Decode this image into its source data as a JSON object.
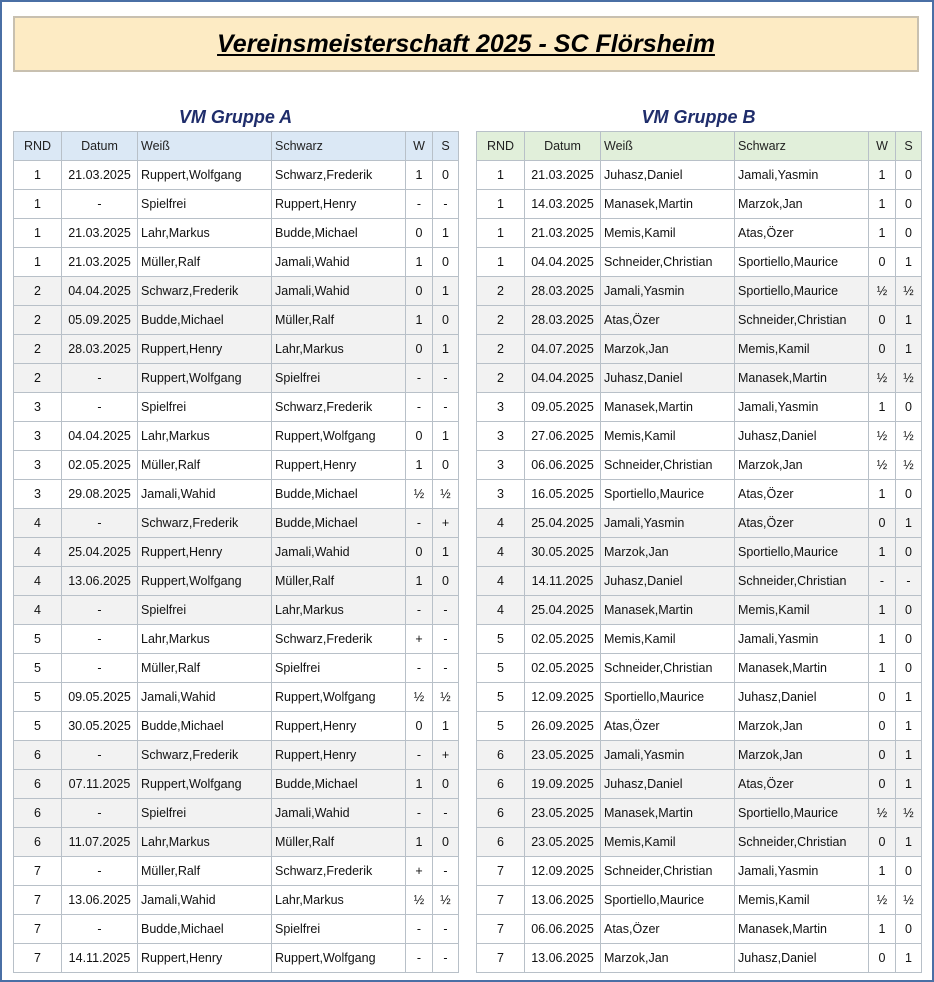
{
  "title": "Vereinsmeisterschaft 2025 - SC Flörsheim",
  "columns": [
    "RND",
    "Datum",
    "Weiß",
    "Schwarz",
    "W",
    "S"
  ],
  "groups": [
    {
      "title": "VM Gruppe A",
      "header_color": "#dbe8f5",
      "rows": [
        [
          "1",
          "21.03.2025",
          "Ruppert,Wolfgang",
          "Schwarz,Frederik",
          "1",
          "0"
        ],
        [
          "1",
          "-",
          "Spielfrei",
          "Ruppert,Henry",
          "-",
          "-"
        ],
        [
          "1",
          "21.03.2025",
          "Lahr,Markus",
          "Budde,Michael",
          "0",
          "1"
        ],
        [
          "1",
          "21.03.2025",
          "Müller,Ralf",
          "Jamali,Wahid",
          "1",
          "0"
        ],
        [
          "2",
          "04.04.2025",
          "Schwarz,Frederik",
          "Jamali,Wahid",
          "0",
          "1"
        ],
        [
          "2",
          "05.09.2025",
          "Budde,Michael",
          "Müller,Ralf",
          "1",
          "0"
        ],
        [
          "2",
          "28.03.2025",
          "Ruppert,Henry",
          "Lahr,Markus",
          "0",
          "1"
        ],
        [
          "2",
          "-",
          "Ruppert,Wolfgang",
          "Spielfrei",
          "-",
          "-"
        ],
        [
          "3",
          "-",
          "Spielfrei",
          "Schwarz,Frederik",
          "-",
          "-"
        ],
        [
          "3",
          "04.04.2025",
          "Lahr,Markus",
          "Ruppert,Wolfgang",
          "0",
          "1"
        ],
        [
          "3",
          "02.05.2025",
          "Müller,Ralf",
          "Ruppert,Henry",
          "1",
          "0"
        ],
        [
          "3",
          "29.08.2025",
          "Jamali,Wahid",
          "Budde,Michael",
          "½",
          "½"
        ],
        [
          "4",
          "-",
          "Schwarz,Frederik",
          "Budde,Michael",
          "-",
          "+"
        ],
        [
          "4",
          "25.04.2025",
          "Ruppert,Henry",
          "Jamali,Wahid",
          "0",
          "1"
        ],
        [
          "4",
          "13.06.2025",
          "Ruppert,Wolfgang",
          "Müller,Ralf",
          "1",
          "0"
        ],
        [
          "4",
          "-",
          "Spielfrei",
          "Lahr,Markus",
          "-",
          "-"
        ],
        [
          "5",
          "-",
          "Lahr,Markus",
          "Schwarz,Frederik",
          "+",
          "-"
        ],
        [
          "5",
          "-",
          "Müller,Ralf",
          "Spielfrei",
          "-",
          "-"
        ],
        [
          "5",
          "09.05.2025",
          "Jamali,Wahid",
          "Ruppert,Wolfgang",
          "½",
          "½"
        ],
        [
          "5",
          "30.05.2025",
          "Budde,Michael",
          "Ruppert,Henry",
          "0",
          "1"
        ],
        [
          "6",
          "-",
          "Schwarz,Frederik",
          "Ruppert,Henry",
          "-",
          "+"
        ],
        [
          "6",
          "07.11.2025",
          "Ruppert,Wolfgang",
          "Budde,Michael",
          "1",
          "0"
        ],
        [
          "6",
          "-",
          "Spielfrei",
          "Jamali,Wahid",
          "-",
          "-"
        ],
        [
          "6",
          "11.07.2025",
          "Lahr,Markus",
          "Müller,Ralf",
          "1",
          "0"
        ],
        [
          "7",
          "-",
          "Müller,Ralf",
          "Schwarz,Frederik",
          "+",
          "-"
        ],
        [
          "7",
          "13.06.2025",
          "Jamali,Wahid",
          "Lahr,Markus",
          "½",
          "½"
        ],
        [
          "7",
          "-",
          "Budde,Michael",
          "Spielfrei",
          "-",
          "-"
        ],
        [
          "7",
          "14.11.2025",
          "Ruppert,Henry",
          "Ruppert,Wolfgang",
          "-",
          "-"
        ]
      ]
    },
    {
      "title": "VM Gruppe B",
      "header_color": "#e1efda",
      "rows": [
        [
          "1",
          "21.03.2025",
          "Juhasz,Daniel",
          "Jamali,Yasmin",
          "1",
          "0"
        ],
        [
          "1",
          "14.03.2025",
          "Manasek,Martin",
          "Marzok,Jan",
          "1",
          "0"
        ],
        [
          "1",
          "21.03.2025",
          "Memis,Kamil",
          "Atas,Özer",
          "1",
          "0"
        ],
        [
          "1",
          "04.04.2025",
          "Schneider,Christian",
          "Sportiello,Maurice",
          "0",
          "1"
        ],
        [
          "2",
          "28.03.2025",
          "Jamali,Yasmin",
          "Sportiello,Maurice",
          "½",
          "½"
        ],
        [
          "2",
          "28.03.2025",
          "Atas,Özer",
          "Schneider,Christian",
          "0",
          "1"
        ],
        [
          "2",
          "04.07.2025",
          "Marzok,Jan",
          "Memis,Kamil",
          "0",
          "1"
        ],
        [
          "2",
          "04.04.2025",
          "Juhasz,Daniel",
          "Manasek,Martin",
          "½",
          "½"
        ],
        [
          "3",
          "09.05.2025",
          "Manasek,Martin",
          "Jamali,Yasmin",
          "1",
          "0"
        ],
        [
          "3",
          "27.06.2025",
          "Memis,Kamil",
          "Juhasz,Daniel",
          "½",
          "½"
        ],
        [
          "3",
          "06.06.2025",
          "Schneider,Christian",
          "Marzok,Jan",
          "½",
          "½"
        ],
        [
          "3",
          "16.05.2025",
          "Sportiello,Maurice",
          "Atas,Özer",
          "1",
          "0"
        ],
        [
          "4",
          "25.04.2025",
          "Jamali,Yasmin",
          "Atas,Özer",
          "0",
          "1"
        ],
        [
          "4",
          "30.05.2025",
          "Marzok,Jan",
          "Sportiello,Maurice",
          "1",
          "0"
        ],
        [
          "4",
          "14.11.2025",
          "Juhasz,Daniel",
          "Schneider,Christian",
          "-",
          "-"
        ],
        [
          "4",
          "25.04.2025",
          "Manasek,Martin",
          "Memis,Kamil",
          "1",
          "0"
        ],
        [
          "5",
          "02.05.2025",
          "Memis,Kamil",
          "Jamali,Yasmin",
          "1",
          "0"
        ],
        [
          "5",
          "02.05.2025",
          "Schneider,Christian",
          "Manasek,Martin",
          "1",
          "0"
        ],
        [
          "5",
          "12.09.2025",
          "Sportiello,Maurice",
          "Juhasz,Daniel",
          "0",
          "1"
        ],
        [
          "5",
          "26.09.2025",
          "Atas,Özer",
          "Marzok,Jan",
          "0",
          "1"
        ],
        [
          "6",
          "23.05.2025",
          "Jamali,Yasmin",
          "Marzok,Jan",
          "0",
          "1"
        ],
        [
          "6",
          "19.09.2025",
          "Juhasz,Daniel",
          "Atas,Özer",
          "0",
          "1"
        ],
        [
          "6",
          "23.05.2025",
          "Manasek,Martin",
          "Sportiello,Maurice",
          "½",
          "½"
        ],
        [
          "6",
          "23.05.2025",
          "Memis,Kamil",
          "Schneider,Christian",
          "0",
          "1"
        ],
        [
          "7",
          "12.09.2025",
          "Schneider,Christian",
          "Jamali,Yasmin",
          "1",
          "0"
        ],
        [
          "7",
          "13.06.2025",
          "Sportiello,Maurice",
          "Memis,Kamil",
          "½",
          "½"
        ],
        [
          "7",
          "06.06.2025",
          "Atas,Özer",
          "Manasek,Martin",
          "1",
          "0"
        ],
        [
          "7",
          "13.06.2025",
          "Marzok,Jan",
          "Juhasz,Daniel",
          "0",
          "1"
        ]
      ]
    }
  ]
}
